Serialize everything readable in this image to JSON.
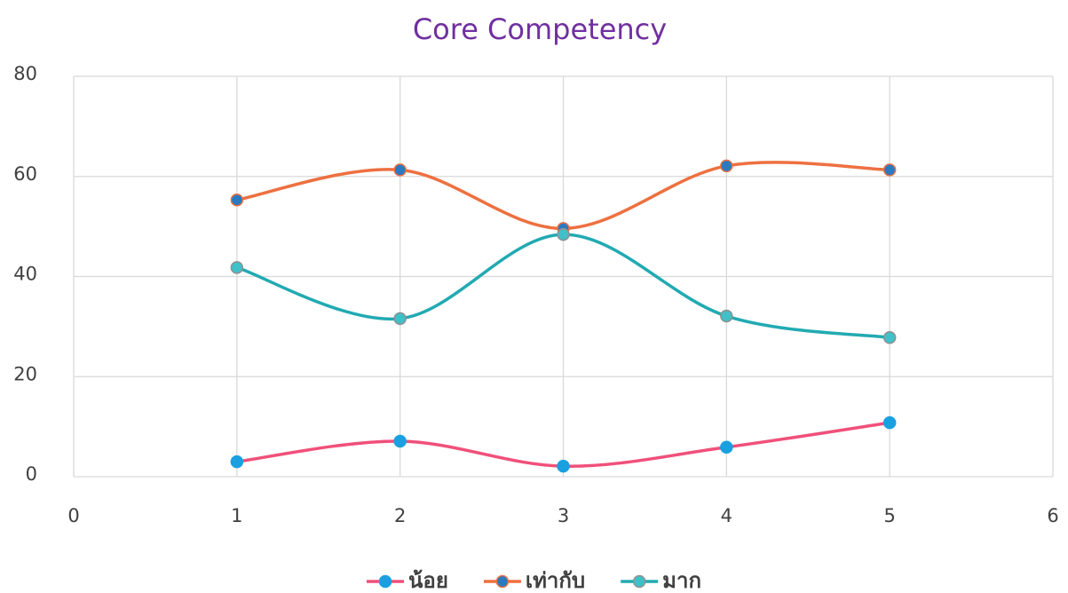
{
  "chart_data": {
    "type": "scatter-smooth",
    "title": "Core Competency",
    "x": [
      1,
      2,
      3,
      4,
      5
    ],
    "series": [
      {
        "name": "น้อย",
        "color": "#f0507a",
        "marker_color": "#1aa0e0",
        "marker_edge": "#1aa0e0",
        "values": [
          3.0,
          7.1,
          2.1,
          5.9,
          10.8
        ]
      },
      {
        "name": "เท่ากับ",
        "color": "#ee7040",
        "marker_color": "#2a7abf",
        "marker_edge": "#ee7040",
        "values": [
          55.3,
          61.3,
          49.6,
          62.1,
          61.3
        ]
      },
      {
        "name": "มาก",
        "color": "#22aab2",
        "marker_color": "#40c0c8",
        "marker_edge": "#909090",
        "values": [
          41.8,
          31.6,
          48.4,
          32.1,
          27.8
        ]
      }
    ],
    "xlim": [
      0,
      6
    ],
    "xticks": [
      0,
      1,
      2,
      3,
      4,
      5,
      6
    ],
    "ylim": [
      0,
      80
    ],
    "yticks": [
      0,
      20,
      40,
      60,
      80
    ],
    "grid": true,
    "legend": "bottom"
  }
}
